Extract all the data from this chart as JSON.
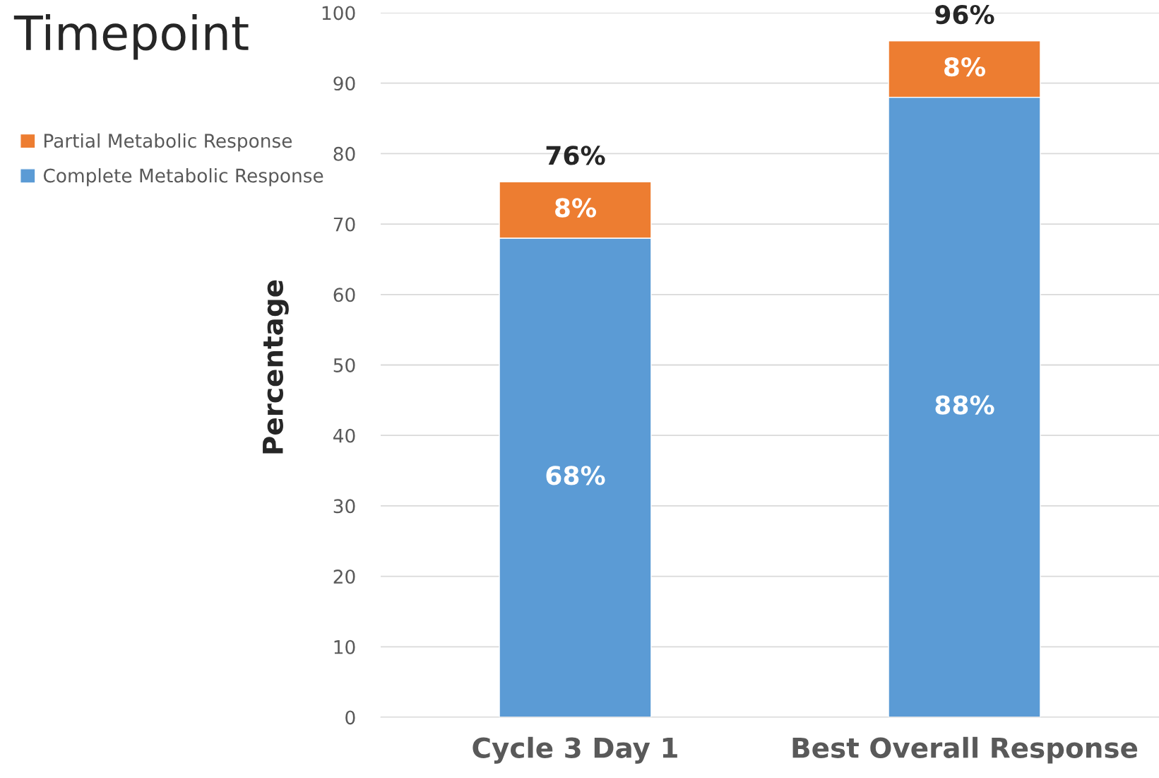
{
  "chart_data": {
    "type": "bar",
    "title": "Timepoint",
    "ylabel": "Percentage",
    "categories": [
      "Cycle 3 Day 1",
      "Best Overall Response"
    ],
    "stacked": true,
    "series": [
      {
        "name": "Complete Metabolic Response",
        "color": "#5b9bd5",
        "values": [
          68,
          88
        ],
        "value_labels": [
          "68%",
          "88%"
        ]
      },
      {
        "name": "Partial Metabolic Response",
        "color": "#ed7d31",
        "values": [
          8,
          8
        ],
        "value_labels": [
          "8%",
          "8%"
        ]
      }
    ],
    "totals": [
      "76%",
      "96%"
    ],
    "ylim": [
      0,
      100
    ],
    "yticks": [
      0,
      10,
      20,
      30,
      40,
      50,
      60,
      70,
      80,
      90,
      100
    ],
    "grid": "y",
    "legend": "left"
  }
}
